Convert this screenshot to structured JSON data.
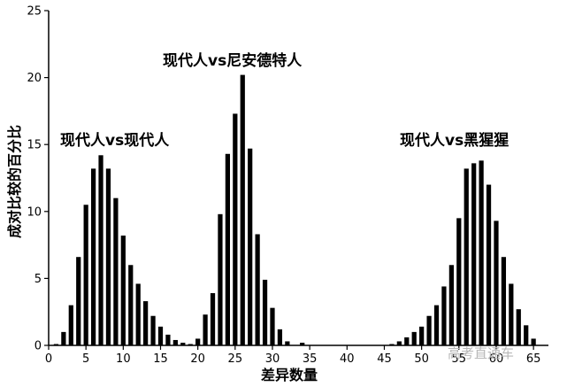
{
  "chart_data": {
    "type": "bar",
    "xlabel": "差异数量",
    "ylabel": "成对比较的百分比",
    "xlim": [
      0,
      67
    ],
    "ylim": [
      0,
      25
    ],
    "xticks": [
      0,
      5,
      10,
      15,
      20,
      25,
      30,
      35,
      40,
      45,
      50,
      55,
      60,
      65
    ],
    "yticks": [
      0,
      5,
      10,
      15,
      20,
      25
    ],
    "grid": false,
    "series": [
      {
        "name": "现代人vs现代人",
        "x": [
          1,
          2,
          3,
          4,
          5,
          6,
          7,
          8,
          9,
          10,
          11,
          12,
          13,
          14,
          15,
          16,
          17,
          18
        ],
        "values": [
          0.1,
          1.0,
          3.0,
          6.6,
          10.5,
          13.2,
          14.2,
          13.2,
          11.0,
          8.2,
          6.0,
          4.6,
          3.3,
          2.2,
          1.4,
          0.8,
          0.4,
          0.2
        ]
      },
      {
        "name": "现代人vs尼安德特人",
        "x": [
          19,
          20,
          21,
          22,
          23,
          24,
          25,
          26,
          27,
          28,
          29,
          30,
          31,
          32,
          34
        ],
        "values": [
          0.1,
          0.5,
          2.3,
          3.9,
          9.8,
          14.3,
          17.3,
          20.2,
          14.7,
          8.3,
          4.9,
          2.8,
          1.2,
          0.3,
          0.2
        ]
      },
      {
        "name": "现代人vs黑猩猩",
        "x": [
          46,
          47,
          48,
          49,
          50,
          51,
          52,
          53,
          54,
          55,
          56,
          57,
          58,
          59,
          60,
          61,
          62,
          63,
          64,
          65
        ],
        "values": [
          0.1,
          0.3,
          0.6,
          1.0,
          1.4,
          2.2,
          3.0,
          4.4,
          6.0,
          9.5,
          13.2,
          13.6,
          13.8,
          12.0,
          9.3,
          6.6,
          4.6,
          2.7,
          1.5,
          0.5
        ]
      }
    ],
    "annotations": [
      "现代人vs现代人",
      "现代人vs尼安德特人",
      "现代人vs黑猩猩"
    ]
  },
  "watermark": "高考直通车"
}
